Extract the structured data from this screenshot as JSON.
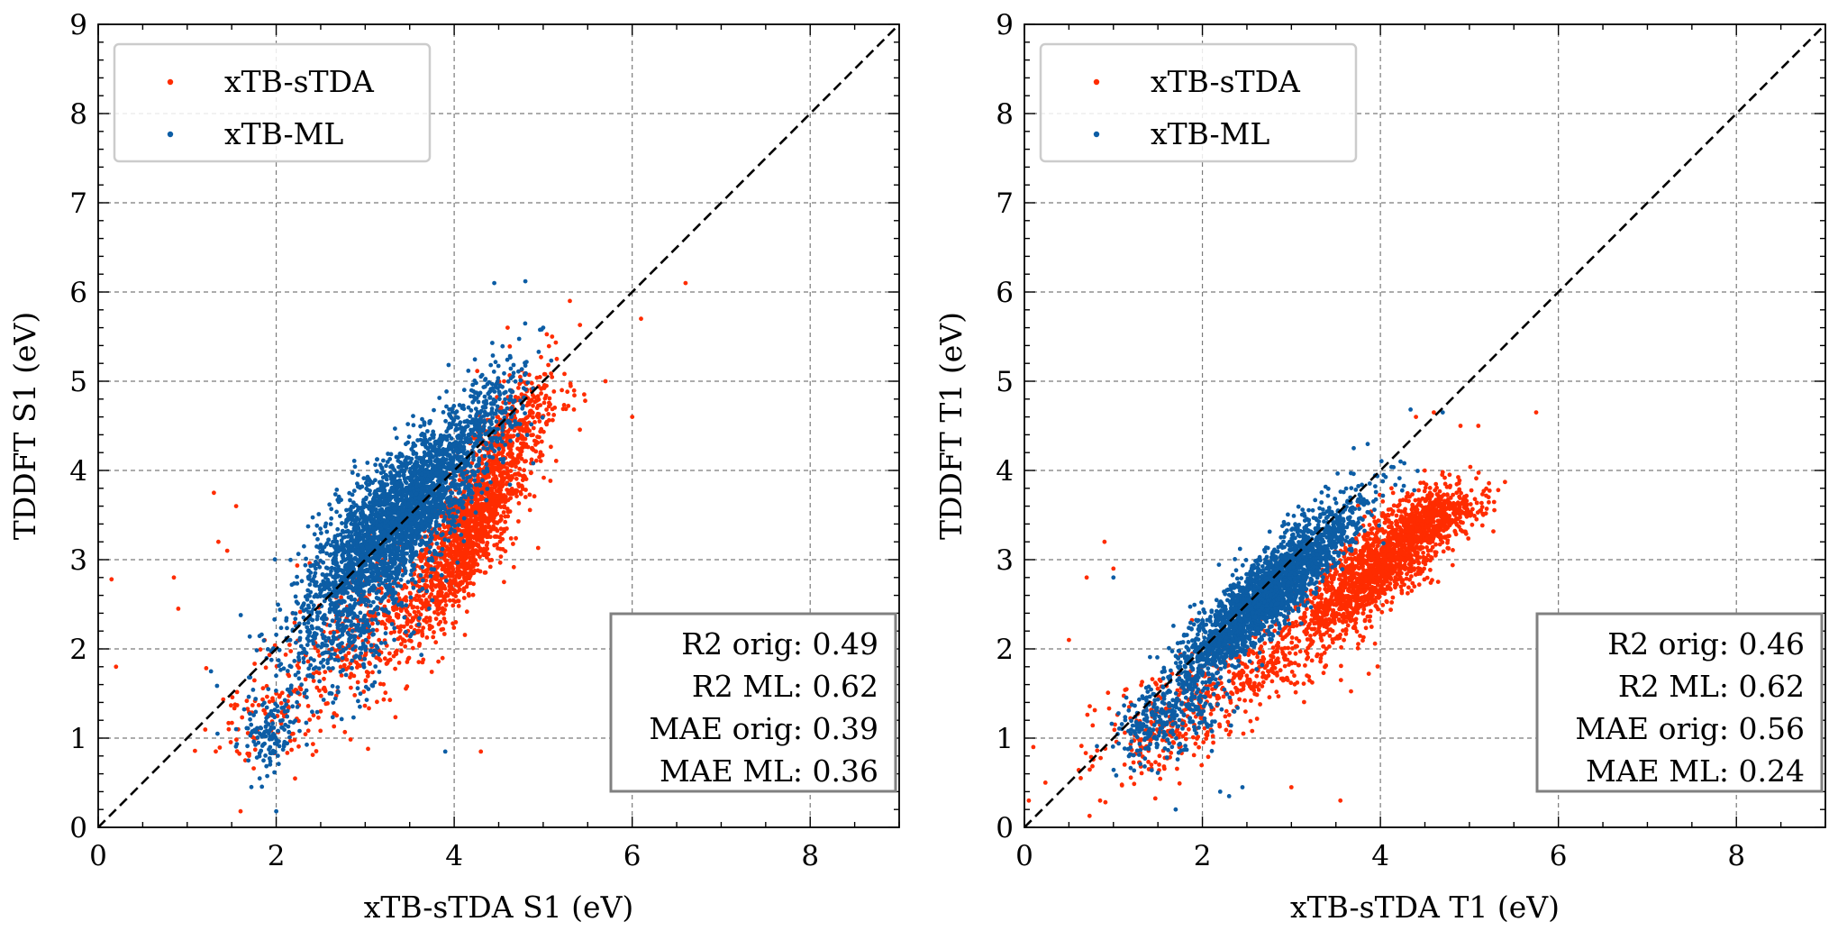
{
  "chart_data": [
    {
      "type": "scatter",
      "xlabel": "xTB-sTDA S1 (eV)",
      "ylabel": "TDDFT S1 (eV)",
      "xlim": [
        0,
        9
      ],
      "ylim": [
        0,
        9
      ],
      "xticks": [
        "0",
        "2",
        "4",
        "6",
        "8"
      ],
      "yticks": [
        "0",
        "1",
        "2",
        "3",
        "4",
        "5",
        "6",
        "7",
        "8",
        "9"
      ],
      "grid": true,
      "legend_position": "top-left",
      "reference_line": "y = x (dashed)",
      "series": [
        {
          "name": "xTB-sTDA",
          "color": "#ff2c00",
          "points": [
            [
              0.15,
              2.78
            ],
            [
              0.2,
              1.8
            ],
            [
              0.85,
              2.8
            ],
            [
              0.9,
              2.45
            ],
            [
              1.3,
              3.75
            ],
            [
              1.35,
              3.2
            ],
            [
              1.45,
              3.1
            ],
            [
              1.55,
              3.6
            ],
            [
              1.6,
              0.18
            ],
            [
              1.75,
              1.0
            ],
            [
              2.0,
              1.5
            ],
            [
              2.5,
              1.3
            ],
            [
              4.3,
              0.85
            ],
            [
              5.7,
              5.0
            ],
            [
              6.0,
              4.6
            ],
            [
              6.6,
              6.1
            ],
            [
              6.1,
              5.7
            ],
            [
              5.1,
              5.5
            ],
            [
              5.3,
              5.9
            ],
            [
              4.6,
              5.6
            ]
          ],
          "clusters": [
            {
              "cx": 4.2,
              "cy": 3.4,
              "sx": 0.32,
              "sy": 0.55,
              "rho": 0.78,
              "n": 1400
            },
            {
              "cx": 3.2,
              "cy": 2.3,
              "sx": 0.5,
              "sy": 0.5,
              "rho": 0.6,
              "n": 450
            },
            {
              "cx": 4.7,
              "cy": 4.5,
              "sx": 0.3,
              "sy": 0.35,
              "rho": 0.6,
              "n": 250
            },
            {
              "cx": 2.0,
              "cy": 1.3,
              "sx": 0.35,
              "sy": 0.35,
              "rho": 0.4,
              "n": 120
            }
          ]
        },
        {
          "name": "xTB-ML",
          "color": "#0c5da5",
          "points": [
            [
              4.45,
              6.1
            ],
            [
              4.8,
              6.12
            ],
            [
              3.9,
              0.85
            ],
            [
              2.0,
              0.18
            ],
            [
              1.55,
              1.1
            ],
            [
              5.0,
              5.6
            ]
          ],
          "clusters": [
            {
              "cx": 3.35,
              "cy": 3.45,
              "sx": 0.45,
              "sy": 0.5,
              "rho": 0.72,
              "n": 2600
            },
            {
              "cx": 2.7,
              "cy": 2.2,
              "sx": 0.45,
              "sy": 0.45,
              "rho": 0.5,
              "n": 450
            },
            {
              "cx": 4.3,
              "cy": 4.6,
              "sx": 0.3,
              "sy": 0.35,
              "rho": 0.6,
              "n": 300
            },
            {
              "cx": 1.95,
              "cy": 1.05,
              "sx": 0.15,
              "sy": 0.2,
              "rho": 0.3,
              "n": 120
            }
          ]
        }
      ],
      "stats": [
        "R2 orig: 0.49",
        "R2 ML: 0.62",
        "MAE orig: 0.39",
        "MAE ML: 0.36"
      ]
    },
    {
      "type": "scatter",
      "xlabel": "xTB-sTDA T1 (eV)",
      "ylabel": "TDDFT T1 (eV)",
      "xlim": [
        0,
        9
      ],
      "ylim": [
        0,
        9
      ],
      "xticks": [
        "0",
        "2",
        "4",
        "6",
        "8"
      ],
      "yticks": [
        "0",
        "1",
        "2",
        "3",
        "4",
        "5",
        "6",
        "7",
        "8",
        "9"
      ],
      "grid": true,
      "legend_position": "top-left",
      "reference_line": "y = x (dashed)",
      "series": [
        {
          "name": "xTB-sTDA",
          "color": "#ff2c00",
          "points": [
            [
              0.05,
              0.3
            ],
            [
              0.1,
              0.9
            ],
            [
              0.5,
              2.1
            ],
            [
              0.7,
              2.8
            ],
            [
              0.9,
              3.2
            ],
            [
              0.85,
              0.3
            ],
            [
              1.0,
              2.9
            ],
            [
              4.6,
              4.65
            ],
            [
              4.4,
              4.6
            ],
            [
              5.75,
              4.65
            ],
            [
              4.9,
              4.5
            ],
            [
              5.1,
              4.5
            ],
            [
              3.0,
              0.45
            ],
            [
              3.55,
              0.3
            ]
          ],
          "clusters": [
            {
              "cx": 3.95,
              "cy": 2.9,
              "sx": 0.45,
              "sy": 0.38,
              "rho": 0.8,
              "n": 1500
            },
            {
              "cx": 4.6,
              "cy": 3.5,
              "sx": 0.28,
              "sy": 0.15,
              "rho": 0.4,
              "n": 400
            },
            {
              "cx": 1.7,
              "cy": 1.2,
              "sx": 0.5,
              "sy": 0.4,
              "rho": 0.6,
              "n": 300
            },
            {
              "cx": 2.8,
              "cy": 1.9,
              "sx": 0.5,
              "sy": 0.3,
              "rho": 0.6,
              "n": 300
            }
          ]
        },
        {
          "name": "xTB-ML",
          "color": "#0c5da5",
          "points": [
            [
              1.7,
              0.2
            ],
            [
              2.2,
              0.4
            ],
            [
              2.3,
              0.35
            ],
            [
              2.45,
              0.45
            ],
            [
              4.7,
              4.65
            ],
            [
              3.7,
              4.25
            ],
            [
              1.0,
              2.8
            ]
          ],
          "clusters": [
            {
              "cx": 2.7,
              "cy": 2.6,
              "sx": 0.5,
              "sy": 0.5,
              "rho": 0.9,
              "n": 2600
            },
            {
              "cx": 1.6,
              "cy": 1.2,
              "sx": 0.3,
              "sy": 0.25,
              "rho": 0.5,
              "n": 250
            }
          ]
        }
      ],
      "stats": [
        "R2 orig: 0.46",
        "R2 ML: 0.62",
        "MAE orig: 0.56",
        "MAE ML: 0.24"
      ]
    }
  ]
}
